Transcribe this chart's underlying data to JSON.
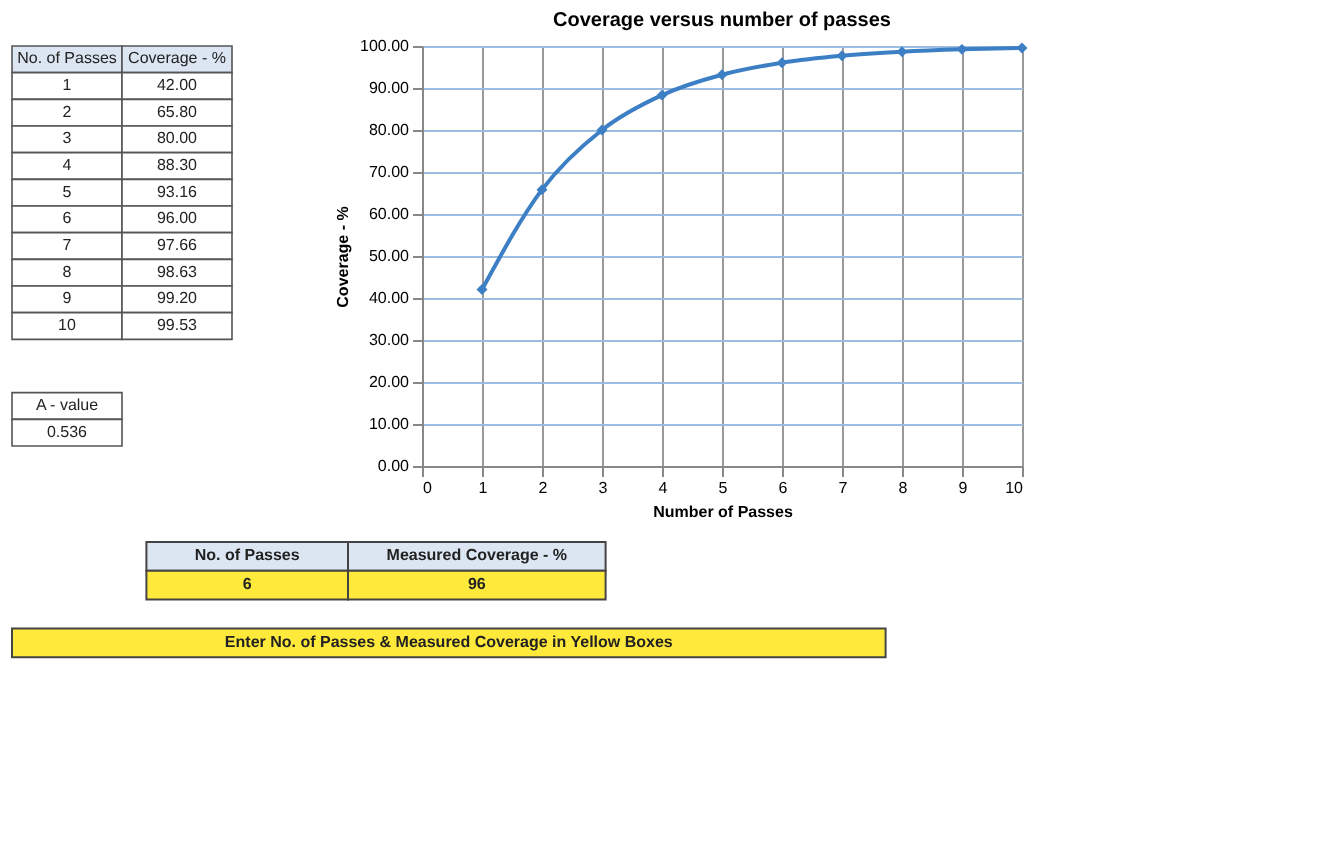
{
  "chart_data": {
    "type": "line",
    "title": "Coverage versus number of passes",
    "xlabel": "Number of Passes",
    "ylabel": "Coverage - %",
    "x": [
      1,
      2,
      3,
      4,
      5,
      6,
      7,
      8,
      9,
      10
    ],
    "series": [
      {
        "color": "#3d7fc4",
        "values": [
          42.0,
          65.8,
          80.0,
          88.3,
          93.16,
          96.0,
          97.66,
          98.63,
          99.2,
          99.53
        ]
      }
    ],
    "xlim": [
      0,
      10
    ],
    "xticks": [
      0,
      1,
      2,
      3,
      4,
      5,
      6,
      7,
      8,
      9,
      10
    ],
    "ylim": [
      0,
      100
    ],
    "yticks": [
      {
        "value": 0,
        "label": "0.00"
      },
      {
        "value": 10,
        "label": "10.00"
      },
      {
        "value": 20,
        "label": "20.00"
      },
      {
        "value": 30,
        "label": "30.00"
      },
      {
        "value": 40,
        "label": "40.00"
      },
      {
        "value": 50,
        "label": "50.00"
      },
      {
        "value": 60,
        "label": "60.00"
      },
      {
        "value": 70,
        "label": "70.00"
      },
      {
        "value": 80,
        "label": "80.00"
      },
      {
        "value": 90,
        "label": "90.00"
      },
      {
        "value": 100,
        "label": "100.00"
      }
    ],
    "grid": true,
    "marker": "diamond",
    "line_style": "solid",
    "annotations": [
      "No. of Passes",
      "Coverage - %",
      "1",
      "42.00",
      "2",
      "65.80",
      "3",
      "80.00",
      "4",
      "88.30",
      "5",
      "93.16",
      "6",
      "96.00",
      "7",
      "97.66",
      "8",
      "98.63",
      "9",
      "99.20",
      "10",
      "99.53",
      "A - value",
      "0.536",
      "No. of Passes",
      "Measured Coverage - %",
      "6",
      "96",
      "Enter No. of Passes & Measured Coverage in Yellow Boxes"
    ]
  }
}
